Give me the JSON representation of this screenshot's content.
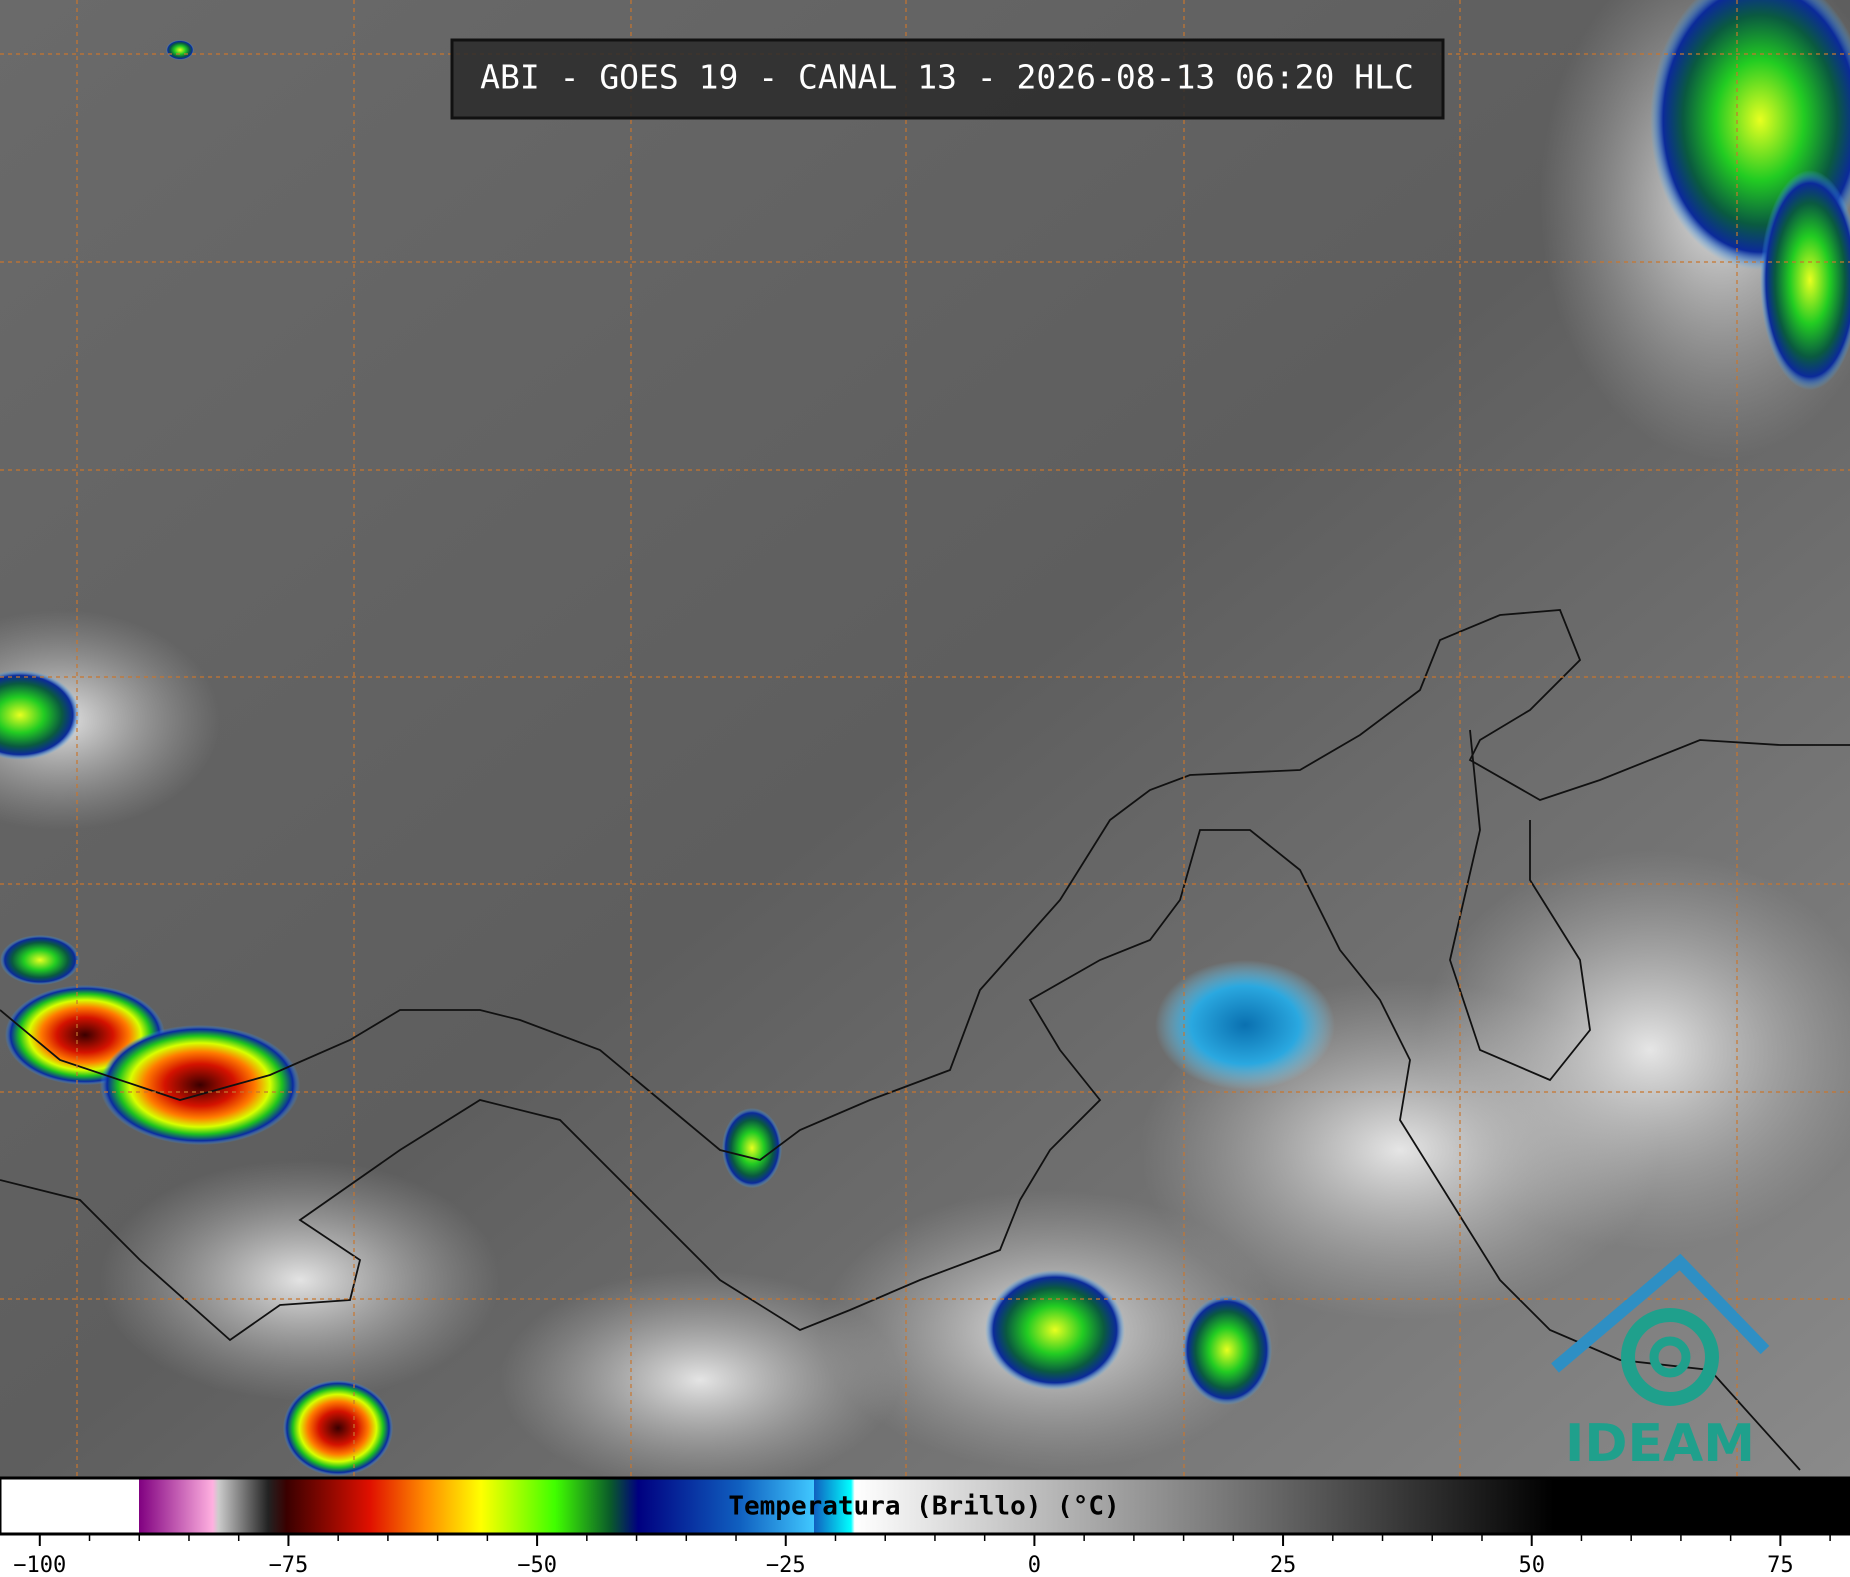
{
  "header": {
    "title": "ABI - GOES 19 - CANAL 13 - 2026-08-13 06:20 HLC"
  },
  "colorbar": {
    "label": "Temperatura (Brillo) (°C)",
    "xlim": [
      -104,
      82
    ],
    "ticks": [
      {
        "value": -100,
        "label": "−100"
      },
      {
        "value": -75,
        "label": "−75"
      },
      {
        "value": -50,
        "label": "−50"
      },
      {
        "value": -25,
        "label": "−25"
      },
      0,
      25,
      50,
      75
    ]
  },
  "logo": {
    "text": "IDEAM"
  }
}
